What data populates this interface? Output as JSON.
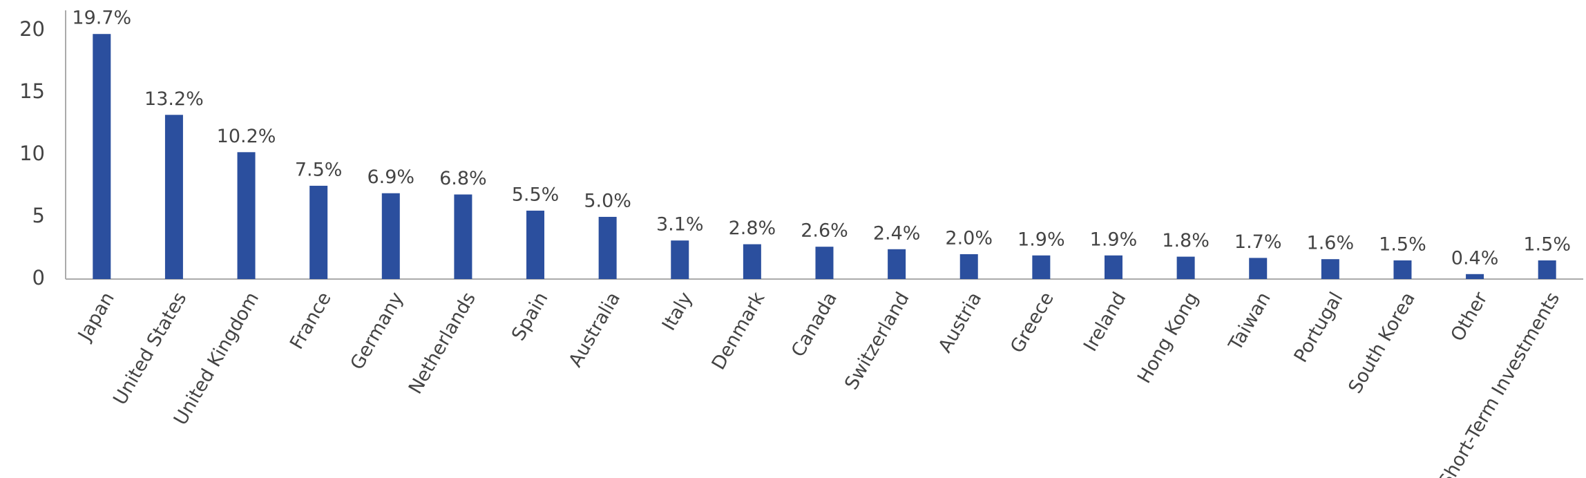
{
  "chart_data": {
    "type": "bar",
    "categories": [
      "Japan",
      "United States",
      "United Kingdom",
      "France",
      "Germany",
      "Netherlands",
      "Spain",
      "Australia",
      "Italy",
      "Denmark",
      "Canada",
      "Switzerland",
      "Austria",
      "Greece",
      "Ireland",
      "Hong Kong",
      "Taiwan",
      "Portugal",
      "South Korea",
      "Other",
      "Short-Term Investments"
    ],
    "values": [
      19.7,
      13.2,
      10.2,
      7.5,
      6.9,
      6.8,
      5.5,
      5.0,
      3.1,
      2.8,
      2.6,
      2.4,
      2.0,
      1.9,
      1.9,
      1.8,
      1.7,
      1.6,
      1.5,
      0.4,
      1.5
    ],
    "value_labels": [
      "19.7%",
      "13.2%",
      "10.2%",
      "7.5%",
      "6.9%",
      "6.8%",
      "5.5%",
      "5.0%",
      "3.1%",
      "2.8%",
      "2.6%",
      "2.4%",
      "2.0%",
      "1.9%",
      "1.9%",
      "1.8%",
      "1.7%",
      "1.6%",
      "1.5%",
      "0.4%",
      "1.5%"
    ],
    "color": "#2b4f9e",
    "ylim": [
      0,
      21.6
    ],
    "yticks": [
      0,
      5,
      10,
      15,
      20
    ],
    "grid": false
  }
}
